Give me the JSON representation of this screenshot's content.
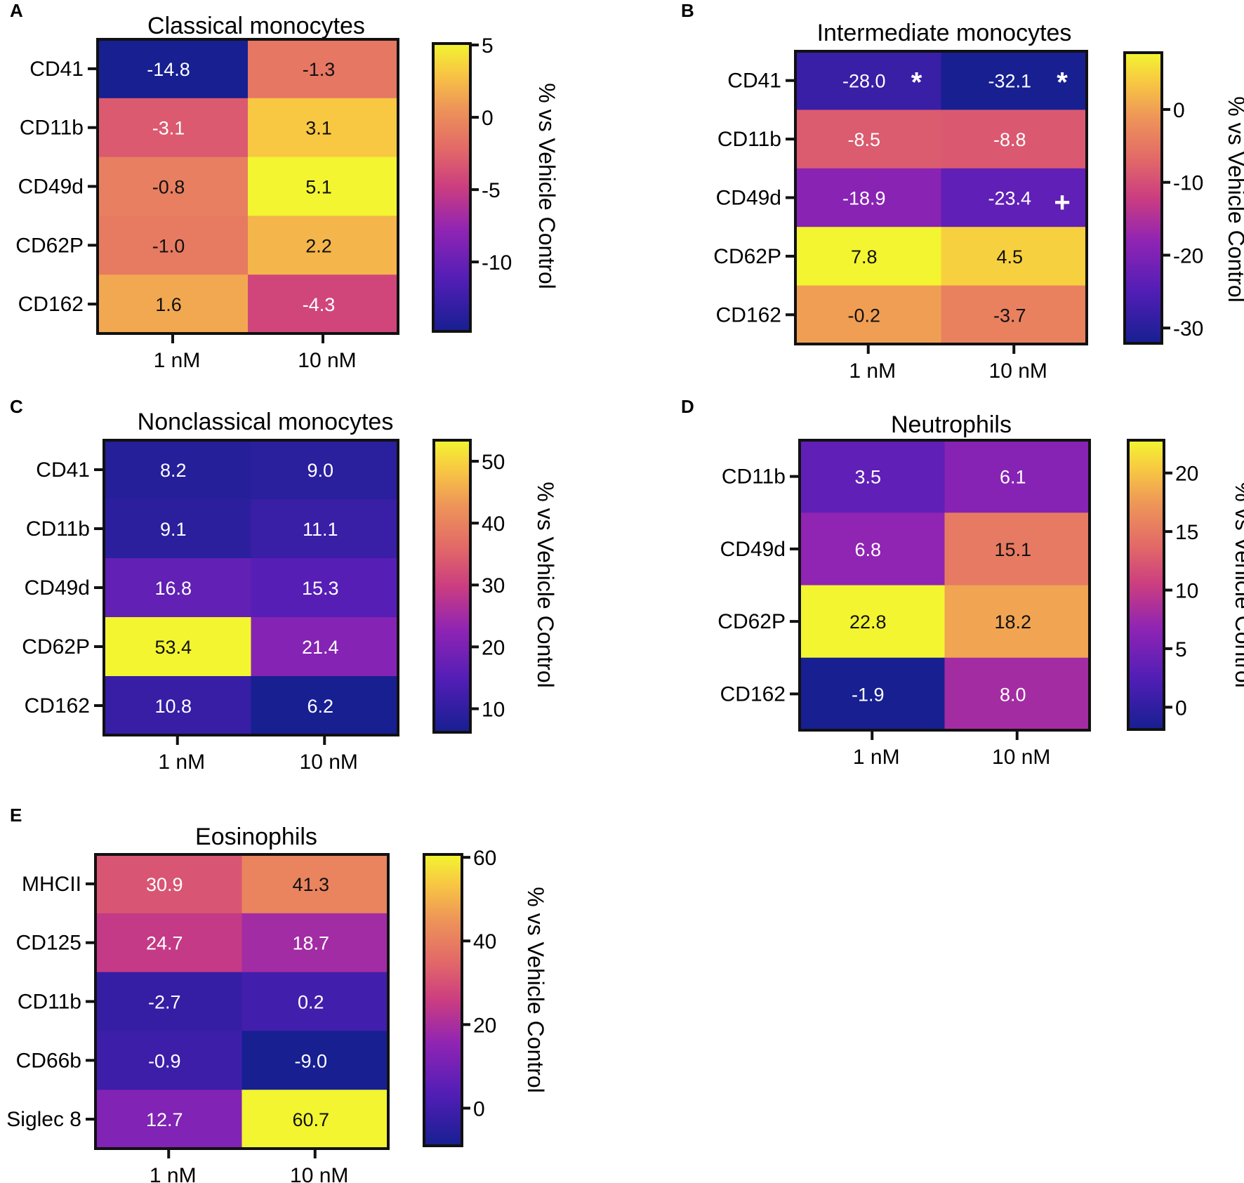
{
  "chart_data": [
    {
      "type": "heatmap",
      "panel": "A",
      "title": "Classical monocytes",
      "rows": [
        "CD41",
        "CD11b",
        "CD49d",
        "CD62P",
        "CD162"
      ],
      "columns": [
        "1 nM",
        "10 nM"
      ],
      "values": [
        [
          -14.8,
          -1.3
        ],
        [
          -3.1,
          3.1
        ],
        [
          -0.8,
          5.1
        ],
        [
          -1.0,
          2.2
        ],
        [
          1.6,
          -4.3
        ]
      ],
      "value_labels": [
        [
          "-14.8",
          "-1.3"
        ],
        [
          "-3.1",
          "3.1"
        ],
        [
          "-0.8",
          "5.1"
        ],
        [
          "-1.0",
          "2.2"
        ],
        [
          "1.6",
          "-4.3"
        ]
      ],
      "marks": [
        [
          "",
          ""
        ],
        [
          "",
          ""
        ],
        [
          "",
          ""
        ],
        [
          "",
          ""
        ],
        [
          "",
          ""
        ]
      ],
      "colorbar": {
        "label": "% vs Vehicle Control",
        "min": -14.8,
        "max": 5.1,
        "ticks": [
          5,
          0,
          -5,
          -10
        ],
        "tick_labels": [
          "5",
          "0",
          "-5",
          "-10"
        ]
      },
      "colormap": "plasma-like (dark blue → purple → red → orange → yellow)"
    },
    {
      "type": "heatmap",
      "panel": "B",
      "title": "Intermediate monocytes",
      "rows": [
        "CD41",
        "CD11b",
        "CD49d",
        "CD62P",
        "CD162"
      ],
      "columns": [
        "1 nM",
        "10 nM"
      ],
      "values": [
        [
          -28.0,
          -32.1
        ],
        [
          -8.5,
          -8.8
        ],
        [
          -18.9,
          -23.4
        ],
        [
          7.8,
          4.5
        ],
        [
          -0.2,
          -3.7
        ]
      ],
      "value_labels": [
        [
          "-28.0",
          "-32.1"
        ],
        [
          "-8.5",
          "-8.8"
        ],
        [
          "-18.9",
          "-23.4"
        ],
        [
          "7.8",
          "4.5"
        ],
        [
          "-0.2",
          "-3.7"
        ]
      ],
      "marks": [
        [
          "*",
          "*"
        ],
        [
          "",
          ""
        ],
        [
          "",
          "+"
        ],
        [
          "",
          ""
        ],
        [
          "",
          ""
        ]
      ],
      "colorbar": {
        "label": "% vs Vehicle Control",
        "min": -32.1,
        "max": 7.8,
        "ticks": [
          0,
          -10,
          -20,
          -30
        ],
        "tick_labels": [
          "0",
          "-10",
          "-20",
          "-30"
        ]
      },
      "colormap": "plasma-like (dark blue → purple → red → orange → yellow)"
    },
    {
      "type": "heatmap",
      "panel": "C",
      "title": "Nonclassical monocytes",
      "rows": [
        "CD41",
        "CD11b",
        "CD49d",
        "CD62P",
        "CD162"
      ],
      "columns": [
        "1 nM",
        "10 nM"
      ],
      "values": [
        [
          8.2,
          9.0
        ],
        [
          9.1,
          11.1
        ],
        [
          16.8,
          15.3
        ],
        [
          53.4,
          21.4
        ],
        [
          10.8,
          6.2
        ]
      ],
      "value_labels": [
        [
          "8.2",
          "9.0"
        ],
        [
          "9.1",
          "11.1"
        ],
        [
          "16.8",
          "15.3"
        ],
        [
          "53.4",
          "21.4"
        ],
        [
          "10.8",
          "6.2"
        ]
      ],
      "marks": [
        [
          "",
          ""
        ],
        [
          "",
          ""
        ],
        [
          "",
          ""
        ],
        [
          "",
          ""
        ],
        [
          "",
          ""
        ]
      ],
      "colorbar": {
        "label": "% vs Vehicle Control",
        "min": 6.2,
        "max": 53.4,
        "ticks": [
          50,
          40,
          30,
          20,
          10
        ],
        "tick_labels": [
          "50",
          "40",
          "30",
          "20",
          "10"
        ]
      },
      "colormap": "plasma-like (dark blue → purple → red → orange → yellow)"
    },
    {
      "type": "heatmap",
      "panel": "D",
      "title": "Neutrophils",
      "rows": [
        "CD11b",
        "CD49d",
        "CD62P",
        "CD162"
      ],
      "columns": [
        "1 nM",
        "10 nM"
      ],
      "values": [
        [
          3.5,
          6.1
        ],
        [
          6.8,
          15.1
        ],
        [
          22.8,
          18.2
        ],
        [
          -1.9,
          8.0
        ]
      ],
      "value_labels": [
        [
          "3.5",
          "6.1"
        ],
        [
          "6.8",
          "15.1"
        ],
        [
          "22.8",
          "18.2"
        ],
        [
          "-1.9",
          "8.0"
        ]
      ],
      "marks": [
        [
          "",
          ""
        ],
        [
          "",
          ""
        ],
        [
          "",
          ""
        ],
        [
          "",
          ""
        ]
      ],
      "colorbar": {
        "label": "% vs Vehicle Control",
        "min": -1.9,
        "max": 22.8,
        "ticks": [
          20,
          15,
          10,
          5,
          0
        ],
        "tick_labels": [
          "20",
          "15",
          "10",
          "5",
          "0"
        ]
      },
      "colormap": "plasma-like (dark blue → purple → red → orange → yellow)"
    },
    {
      "type": "heatmap",
      "panel": "E",
      "title": "Eosinophils",
      "rows": [
        "MHCII",
        "CD125",
        "CD11b",
        "CD66b",
        "Siglec 8"
      ],
      "columns": [
        "1 nM",
        "10 nM"
      ],
      "values": [
        [
          30.9,
          41.3
        ],
        [
          24.7,
          18.7
        ],
        [
          -2.7,
          0.2
        ],
        [
          -0.9,
          -9.0
        ],
        [
          12.7,
          60.7
        ]
      ],
      "value_labels": [
        [
          "30.9",
          "41.3"
        ],
        [
          "24.7",
          "18.7"
        ],
        [
          "-2.7",
          "0.2"
        ],
        [
          "-0.9",
          "-9.0"
        ],
        [
          "12.7",
          "60.7"
        ]
      ],
      "marks": [
        [
          "",
          ""
        ],
        [
          "",
          ""
        ],
        [
          "",
          ""
        ],
        [
          "",
          ""
        ],
        [
          "",
          ""
        ]
      ],
      "colorbar": {
        "label": "% vs Vehicle Control",
        "min": -9.0,
        "max": 60.7,
        "ticks": [
          60,
          40,
          20,
          0
        ],
        "tick_labels": [
          "60",
          "40",
          "20",
          "0"
        ]
      },
      "colormap": "plasma-like (dark blue → purple → red → orange → yellow)"
    }
  ]
}
